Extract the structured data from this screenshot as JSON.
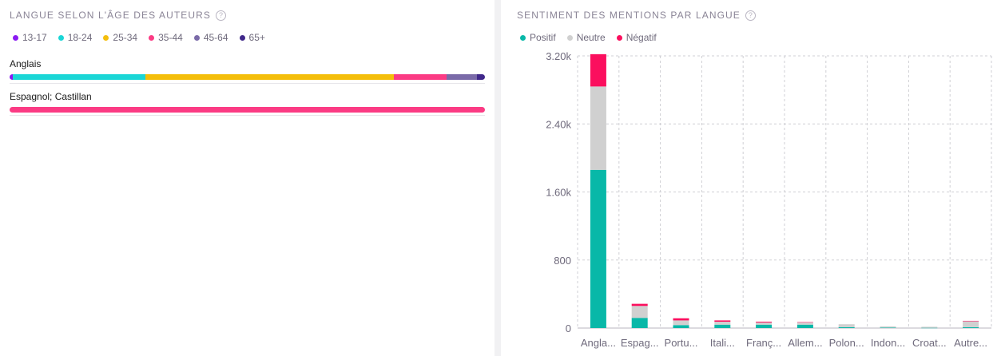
{
  "left": {
    "title": "LANGUE SELON L'ÂGE DES AUTEURS",
    "help_icon": "question-circle-icon",
    "legend": [
      {
        "label": "13-17",
        "color": "#8a1bf2"
      },
      {
        "label": "18-24",
        "color": "#1ad6d6"
      },
      {
        "label": "25-34",
        "color": "#f4be0b"
      },
      {
        "label": "35-44",
        "color": "#fb3b84"
      },
      {
        "label": "45-64",
        "color": "#7a6aa8"
      },
      {
        "label": "65+",
        "color": "#40288a"
      }
    ],
    "rows": [
      {
        "label": "Anglais",
        "shares": [
          0.6,
          28.0,
          52.2,
          11.1,
          6.4,
          1.7
        ]
      },
      {
        "label": "Espagnol; Castillan",
        "shares": [
          0,
          0,
          0,
          100,
          0,
          0
        ]
      }
    ]
  },
  "right": {
    "title": "SENTIMENT DES MENTIONS PAR LANGUE",
    "help_icon": "question-circle-icon",
    "legend": [
      {
        "label": "Positif",
        "color": "#08b8a8"
      },
      {
        "label": "Neutre",
        "color": "#d0d0d0"
      },
      {
        "label": "Négatif",
        "color": "#fb0f5e"
      }
    ]
  },
  "chart_data": [
    {
      "type": "bar",
      "stacked": true,
      "orientation": "horizontal",
      "categories": [
        "Anglais",
        "Espagnol; Castillan"
      ],
      "series": [
        {
          "name": "13-17",
          "values": [
            0.6,
            0
          ]
        },
        {
          "name": "18-24",
          "values": [
            28.0,
            0
          ]
        },
        {
          "name": "25-34",
          "values": [
            52.2,
            0
          ]
        },
        {
          "name": "35-44",
          "values": [
            11.1,
            100
          ]
        },
        {
          "name": "45-64",
          "values": [
            6.4,
            0
          ]
        },
        {
          "name": "65+",
          "values": [
            1.7,
            0
          ]
        }
      ],
      "title": "LANGUE SELON L'ÂGE DES AUTEURS",
      "legend": "top-left"
    },
    {
      "type": "bar",
      "stacked": true,
      "title": "SENTIMENT DES MENTIONS PAR LANGUE",
      "categories": [
        "Angla...",
        "Espag...",
        "Portu...",
        "Itali...",
        "Franç...",
        "Allem...",
        "Polon...",
        "Indon...",
        "Croat...",
        "Autre..."
      ],
      "series": [
        {
          "name": "Positif",
          "values": [
            1860,
            120,
            35,
            40,
            40,
            40,
            10,
            5,
            3,
            10
          ]
        },
        {
          "name": "Neutre",
          "values": [
            980,
            140,
            55,
            35,
            25,
            25,
            35,
            15,
            12,
            70
          ]
        },
        {
          "name": "Négatif",
          "values": [
            380,
            25,
            25,
            15,
            10,
            5,
            0,
            0,
            0,
            5
          ]
        }
      ],
      "yticks": [
        "0",
        "800",
        "1.60k",
        "2.40k",
        "3.20k"
      ],
      "ylim": [
        0,
        3200
      ],
      "grid": true,
      "legend": "top-left"
    }
  ]
}
